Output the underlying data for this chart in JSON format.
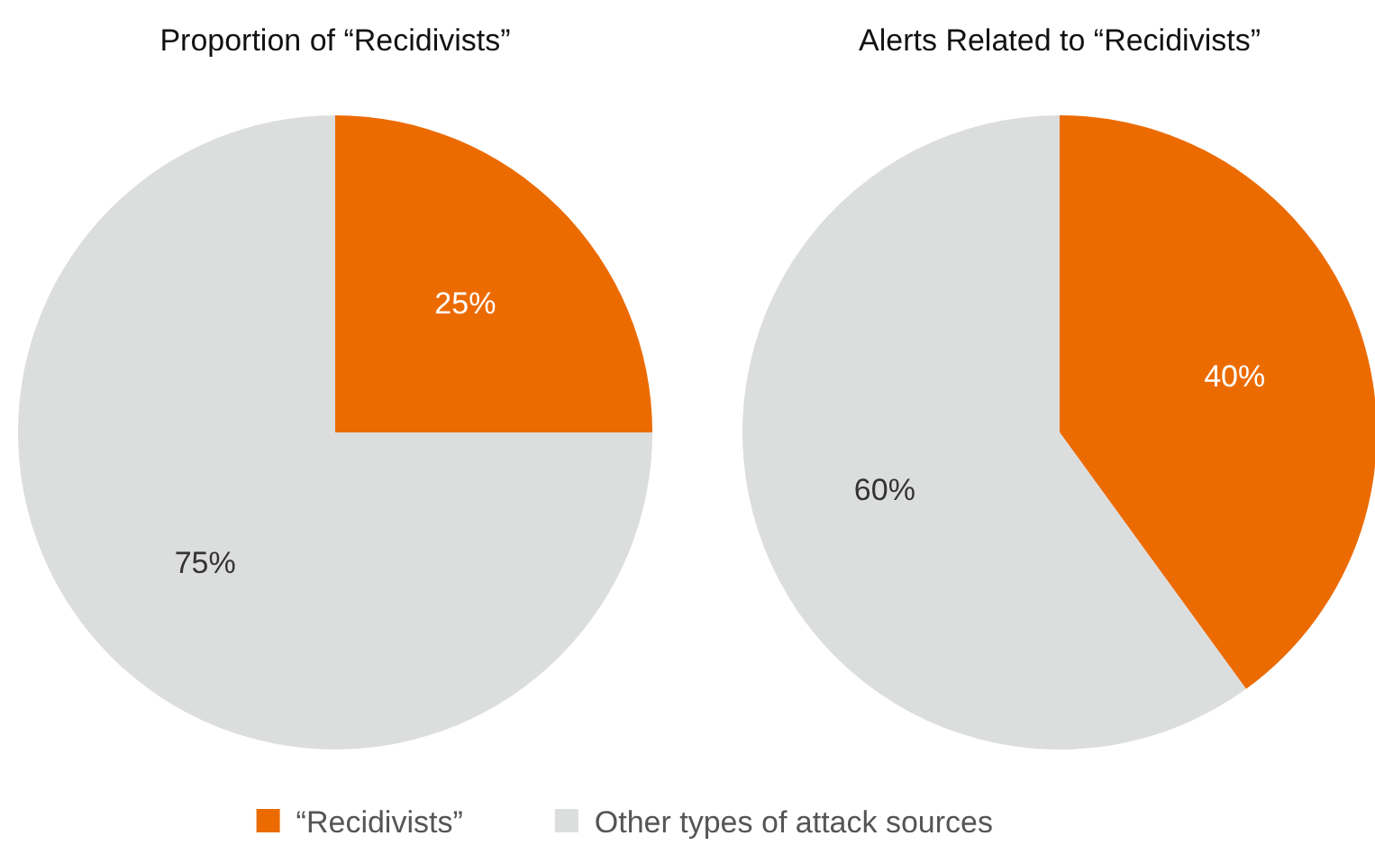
{
  "chart_data": [
    {
      "type": "pie",
      "title": "Proportion of “Recidivists”",
      "categories": [
        "“Recidivists”",
        "Other types of attack sources"
      ],
      "values": [
        25,
        75
      ],
      "colors": [
        "#ec6b00",
        "#dcdddd"
      ],
      "value_labels": [
        "25%",
        "75%"
      ],
      "legend": "bottom"
    },
    {
      "type": "pie",
      "title": "Alerts Related to “Recidivists”",
      "values": [
        40,
        60
      ],
      "colors": [
        "#ec6b00",
        "#dcdddd"
      ],
      "value_labels": [
        "40%",
        "60%"
      ]
    }
  ]
}
